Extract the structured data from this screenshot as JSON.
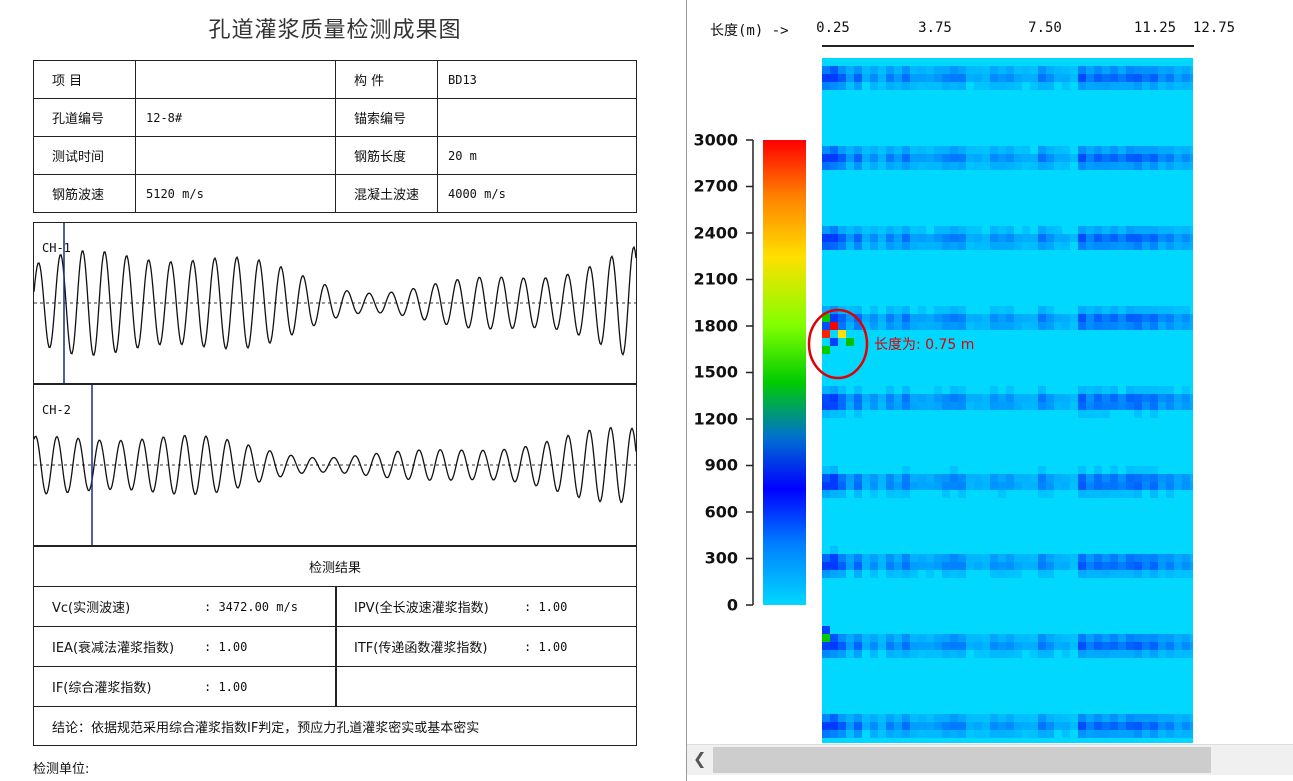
{
  "report": {
    "title": "孔道灌浆质量检测成果图",
    "info": [
      [
        "项    目",
        "",
        "构    件",
        "BD13"
      ],
      [
        "孔道编号",
        "12-8#",
        "锚索编号",
        ""
      ],
      [
        "测试时间",
        "",
        "钢筋长度",
        "20 m"
      ],
      [
        "钢筋波速",
        "5120 m/s",
        "混凝土波速",
        "4000 m/s"
      ]
    ],
    "channels": [
      {
        "label": "CH-1"
      },
      {
        "label": "CH-2"
      }
    ],
    "results": {
      "header": "检测结果",
      "vc_label": "Vc(实测波速)",
      "vc_value": ": 3472.00 m/s",
      "ipv_label": "IPV(全长波速灌浆指数)",
      "ipv_value": ": 1.00",
      "iea_label": "IEA(衰减法灌浆指数)",
      "iea_value": ": 1.00",
      "itf_label": "ITF(传递函数灌浆指数)",
      "itf_value": ": 1.00",
      "if_label": "IF(综合灌浆指数)",
      "if_value": ": 1.00",
      "conclusion": "结论：依据规范采用综合灌浆指数IF判定，预应力孔道灌浆密实或基本密实"
    },
    "unit_label": "检测单位:"
  },
  "scan": {
    "length_label": "长度(m) ->",
    "x_ticks": [
      "0.25",
      "3.75",
      "7.50",
      "11.25",
      "12.75"
    ],
    "y_ticks": [
      "3000",
      "2700",
      "2400",
      "2100",
      "1800",
      "1500",
      "1200",
      "900",
      "600",
      "300",
      "0"
    ],
    "annotation": "长度为: 0.75 m",
    "colors": {
      "background": "#00d8ff",
      "band": "#0060ff",
      "marker": "#e00000"
    }
  },
  "chart_data": {
    "type": "heatmap",
    "x_ticks": [
      0.25,
      3.75,
      7.5,
      11.25,
      12.75
    ],
    "xlabel": "长度(m) ->",
    "y_ticks": [
      0,
      300,
      600,
      900,
      1200,
      1500,
      1800,
      2100,
      2400,
      2700,
      3000
    ],
    "colorscale": [
      "#ff0000",
      "#ffe000",
      "#00cc00",
      "#0000ff",
      "#00d8ff"
    ],
    "annotation": {
      "text": "长度为: 0.75 m",
      "x": 0.75,
      "y": 1700
    }
  }
}
